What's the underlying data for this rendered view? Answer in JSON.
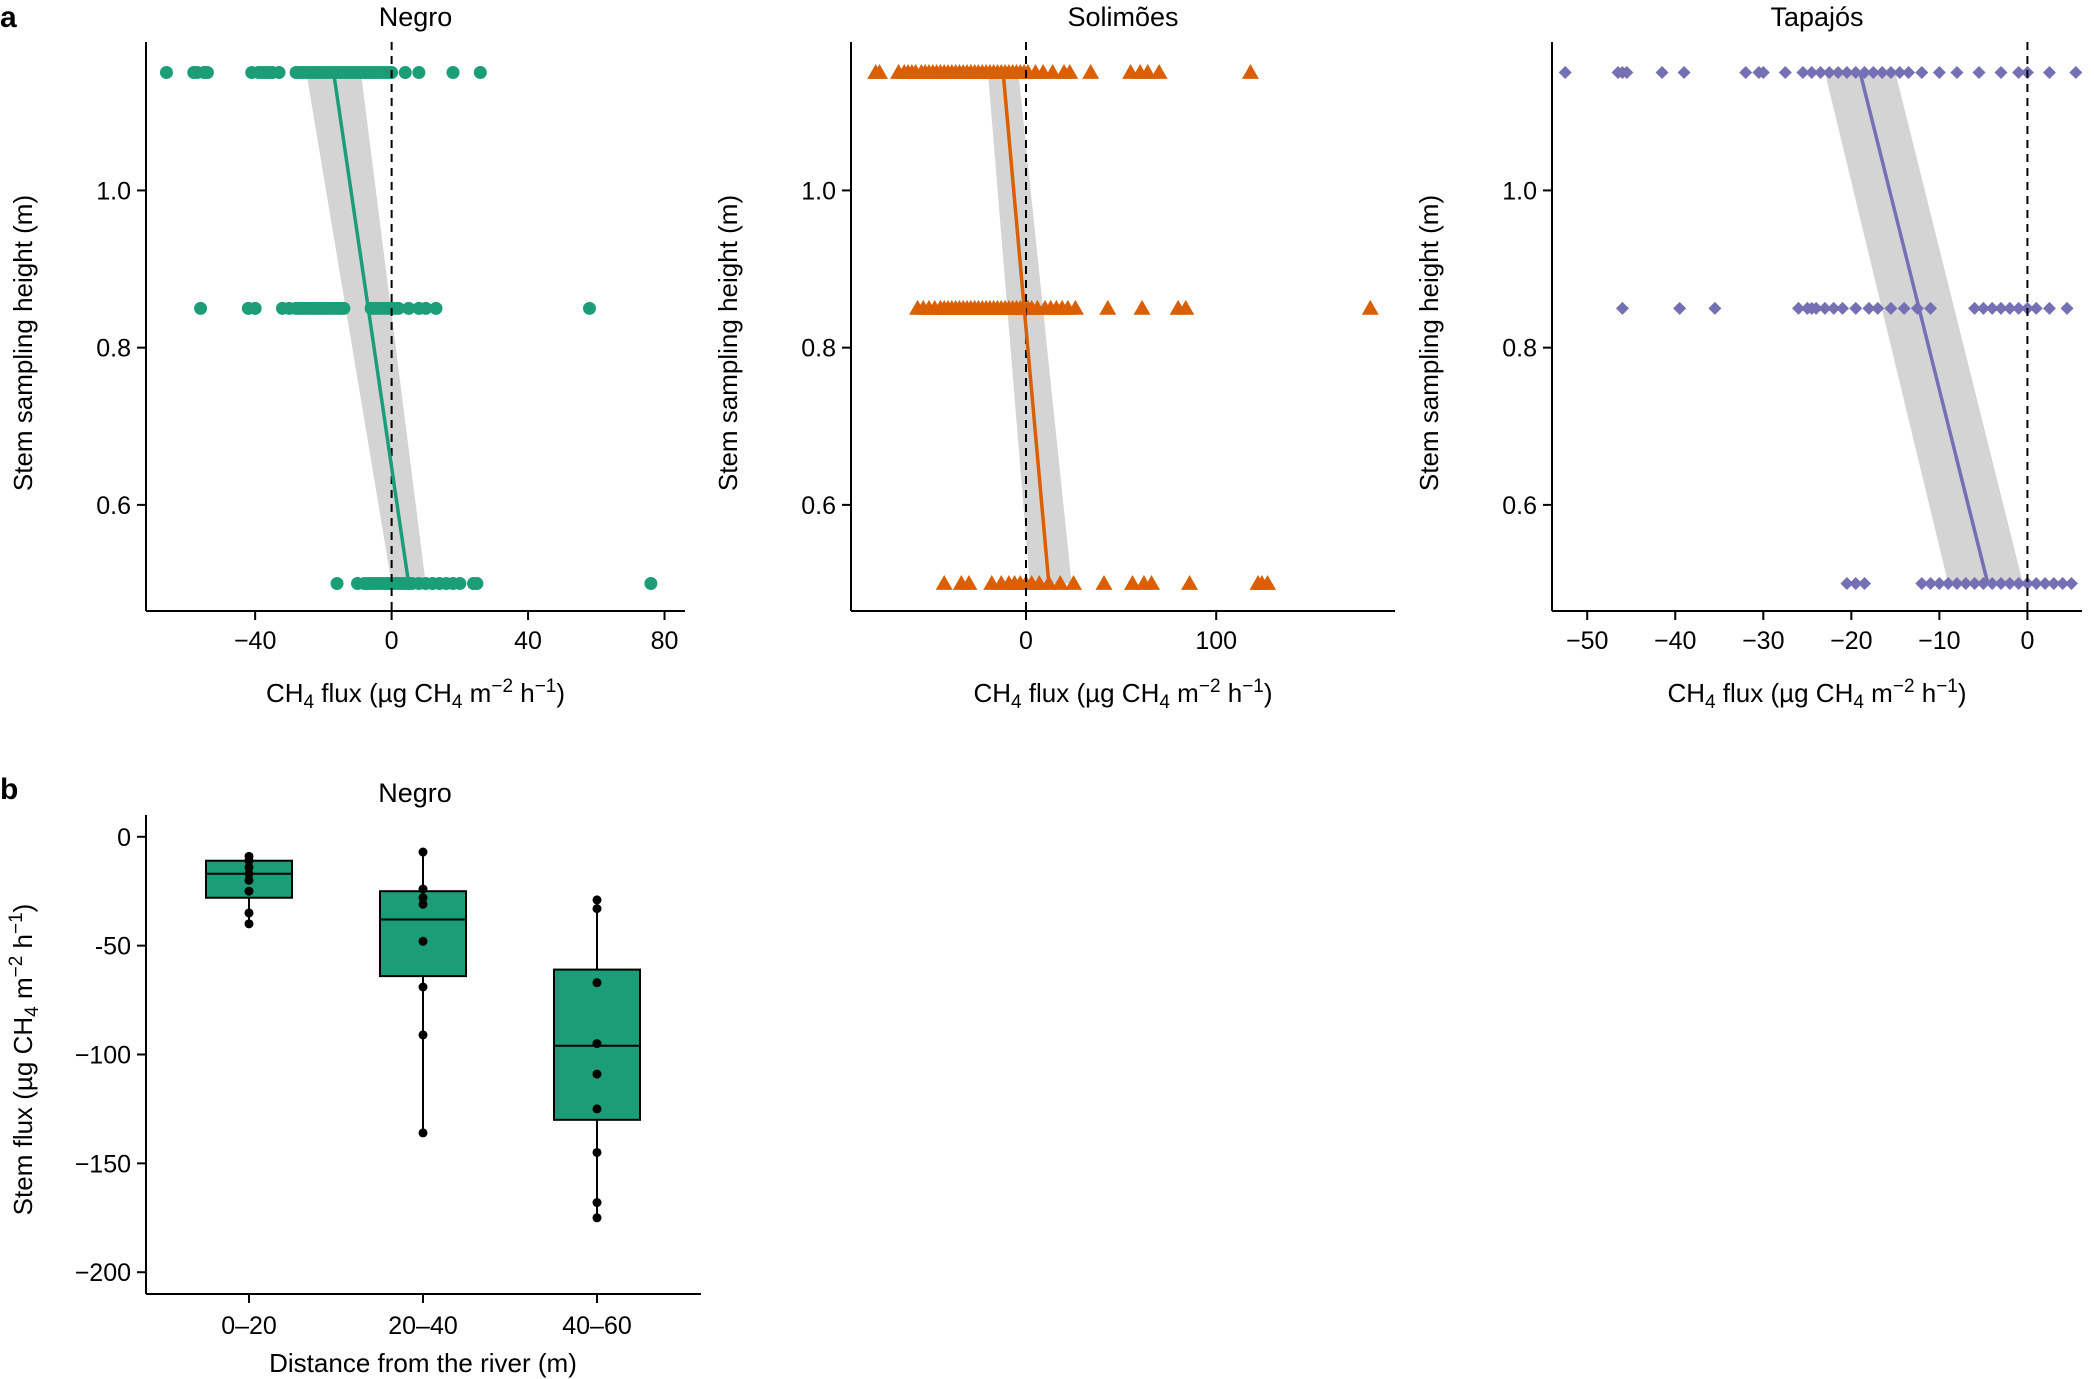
{
  "colors": {
    "negro": "#1b9e77",
    "solimoes": "#d95f02",
    "tapajos": "#7570b3",
    "ribbon": "#cfcfcf",
    "box_fill": "#1b9e77",
    "black": "#000000"
  },
  "chart_data": [
    {
      "panel": "a",
      "type": "scatter",
      "title": "Negro",
      "xlabel": "CH₄ flux (µg CH₄ m⁻² h⁻¹)",
      "ylabel": "Stem sampling height (m)",
      "xlim": [
        -72,
        86
      ],
      "ylim": [
        0.465,
        1.185
      ],
      "xticks": [
        -40,
        0,
        40,
        80
      ],
      "yticks": [
        0.6,
        0.8,
        1.0
      ],
      "xtick_labels": [
        "−40",
        "0",
        "40",
        "80"
      ],
      "ytick_labels": [
        "0.6",
        "0.8",
        "1.0"
      ],
      "marker": "circle",
      "color_key": "negro",
      "ref_line_x": 0,
      "points": {
        "1.15": [
          -66,
          -58,
          -57,
          -55,
          -54,
          -41,
          -39,
          -38,
          -37,
          -36,
          -35,
          -33,
          -28,
          -27,
          -26,
          -25,
          -24,
          -23,
          -22,
          -21,
          -20,
          -19,
          -18,
          -17,
          -16,
          -15,
          -14,
          -13,
          -12,
          -11,
          -10,
          -9,
          -8,
          -7,
          -6,
          -5,
          -4,
          -3,
          -2,
          -1,
          0,
          4,
          8,
          18,
          26
        ],
        "0.85": [
          -56,
          -42,
          -40,
          -32,
          -30,
          -28,
          -27,
          -26,
          -25,
          -24,
          -23,
          -22,
          -21,
          -20,
          -19,
          -18,
          -17,
          -16,
          -15,
          -14,
          -6,
          -5,
          -4,
          -3,
          -2,
          -1,
          0,
          1,
          2,
          5,
          8,
          10,
          13,
          58
        ],
        "0.5": [
          -16,
          -10,
          -8,
          -7,
          -6,
          -5,
          -4,
          -3,
          -2,
          -1,
          0,
          1,
          2,
          3,
          4,
          5,
          6,
          8,
          10,
          12,
          14,
          16,
          18,
          20,
          24,
          25,
          76
        ]
      },
      "fit": {
        "y": [
          0.5,
          1.15
        ],
        "x": [
          5,
          -17
        ]
      },
      "ci": {
        "lower": [
          0,
          -25
        ],
        "upper": [
          10,
          -9
        ]
      }
    },
    {
      "panel": "a",
      "type": "scatter",
      "title": "Solimões",
      "xlabel": "CH₄ flux (µg CH₄ m⁻² h⁻¹)",
      "ylabel": "Stem sampling height (m)",
      "xlim": [
        -92,
        194
      ],
      "ylim": [
        0.465,
        1.185
      ],
      "xticks": [
        0,
        100
      ],
      "yticks": [
        0.6,
        0.8,
        1.0
      ],
      "xtick_labels": [
        "0",
        "100"
      ],
      "ytick_labels": [
        "0.6",
        "0.8",
        "1.0"
      ],
      "marker": "triangle",
      "color_key": "solimoes",
      "ref_line_x": 0,
      "points": {
        "1.15": [
          -79,
          -77,
          -67,
          -64,
          -62,
          -60,
          -58,
          -55,
          -53,
          -51,
          -49,
          -47,
          -45,
          -43,
          -41,
          -39,
          -37,
          -35,
          -33,
          -31,
          -29,
          -27,
          -25,
          -23,
          -21,
          -19,
          -17,
          -15,
          -13,
          -11,
          -9,
          -7,
          -5,
          -3,
          -1,
          1,
          5,
          9,
          14,
          20,
          23,
          34,
          55,
          60,
          64,
          70,
          118
        ],
        "0.85": [
          -57,
          -54,
          -51,
          -48,
          -45,
          -43,
          -41,
          -39,
          -37,
          -35,
          -33,
          -31,
          -29,
          -27,
          -25,
          -23,
          -21,
          -19,
          -17,
          -15,
          -13,
          -11,
          -9,
          -7,
          -5,
          -3,
          -1,
          1,
          3,
          6,
          10,
          13,
          16,
          19,
          22,
          26,
          43,
          61,
          80,
          84,
          181
        ],
        "0.5": [
          -43,
          -34,
          -30,
          -18,
          -13,
          -9,
          -6,
          -3,
          0,
          3,
          7,
          12,
          18,
          25,
          41,
          56,
          62,
          66,
          86,
          122,
          124,
          127
        ]
      },
      "fit": {
        "y": [
          0.5,
          1.15
        ],
        "x": [
          12,
          -12
        ]
      },
      "ci": {
        "lower": [
          2,
          -20
        ],
        "upper": [
          24,
          -4
        ]
      }
    },
    {
      "panel": "a",
      "type": "scatter",
      "title": "Tapajós",
      "xlabel": "CH₄ flux (µg CH₄ m⁻² h⁻¹)",
      "ylabel": "Stem sampling height (m)",
      "xlim": [
        -54,
        6.2
      ],
      "ylim": [
        0.465,
        1.185
      ],
      "xticks": [
        -50,
        -40,
        -30,
        -20,
        -10,
        0
      ],
      "yticks": [
        0.6,
        0.8,
        1.0
      ],
      "xtick_labels": [
        "−50",
        "−40",
        "−30",
        "−20",
        "−10",
        "0"
      ],
      "ytick_labels": [
        "0.6",
        "0.8",
        "1.0"
      ],
      "marker": "diamond",
      "color_key": "tapajos",
      "ref_line_x": 0,
      "points": {
        "1.15": [
          -52.5,
          -46.5,
          -46,
          -45.5,
          -41.5,
          -39,
          -32,
          -30.5,
          -30,
          -27.5,
          -25.5,
          -24.5,
          -23.5,
          -22.5,
          -21.5,
          -20.5,
          -19.5,
          -18.5,
          -17.5,
          -16.5,
          -15.5,
          -14.5,
          -13.5,
          -12,
          -10,
          -8,
          -5.5,
          -3,
          -1,
          0,
          2.5,
          5.5
        ],
        "0.85": [
          -46,
          -39.5,
          -35.5,
          -26,
          -25,
          -24.5,
          -24,
          -23,
          -22,
          -21,
          -19.5,
          -18,
          -17,
          -15.5,
          -14,
          -12.5,
          -11,
          -6,
          -5,
          -4,
          -3,
          -2,
          -1,
          0,
          1,
          2.5,
          4.5
        ],
        "0.5": [
          -20.5,
          -19.5,
          -18.5,
          -12,
          -11,
          -10,
          -9,
          -8,
          -7,
          -6,
          -5,
          -4,
          -3,
          -2,
          -1,
          0,
          1,
          2,
          3,
          4,
          5
        ]
      },
      "fit": {
        "y": [
          0.5,
          1.15
        ],
        "x": [
          -4.5,
          -19
        ]
      },
      "ci": {
        "lower": [
          -9,
          -23
        ],
        "upper": [
          -0.5,
          -15
        ]
      }
    },
    {
      "panel": "b",
      "type": "box",
      "title": "Negro",
      "xlabel": "Distance from the river (m)",
      "ylabel": "Stem flux  (µg CH₄ m⁻² h⁻¹)",
      "categories": [
        "0–20",
        "20–40",
        "40–60"
      ],
      "ylim": [
        -210,
        10
      ],
      "yticks": [
        0,
        -50,
        -100,
        -150,
        -200
      ],
      "ytick_labels": [
        "0",
        "-50",
        "−100",
        "−150",
        "−200"
      ],
      "boxes": [
        {
          "q1": -28,
          "median": -17,
          "q3": -11,
          "whisker_low": -40,
          "whisker_high": -9
        },
        {
          "q1": -64,
          "median": -38,
          "q3": -25,
          "whisker_low": -136,
          "whisker_high": -7
        },
        {
          "q1": -130,
          "median": -96,
          "q3": -61,
          "whisker_low": -175,
          "whisker_high": -29
        }
      ],
      "jitter_points": [
        [
          -9,
          -11,
          -14,
          -17,
          -20,
          -25,
          -35,
          -40
        ],
        [
          -7,
          -24,
          -28,
          -31,
          -48,
          -69,
          -91,
          -136
        ],
        [
          -29,
          -33,
          -67,
          -95,
          -109,
          -125,
          -145,
          -168,
          -175
        ]
      ]
    }
  ]
}
